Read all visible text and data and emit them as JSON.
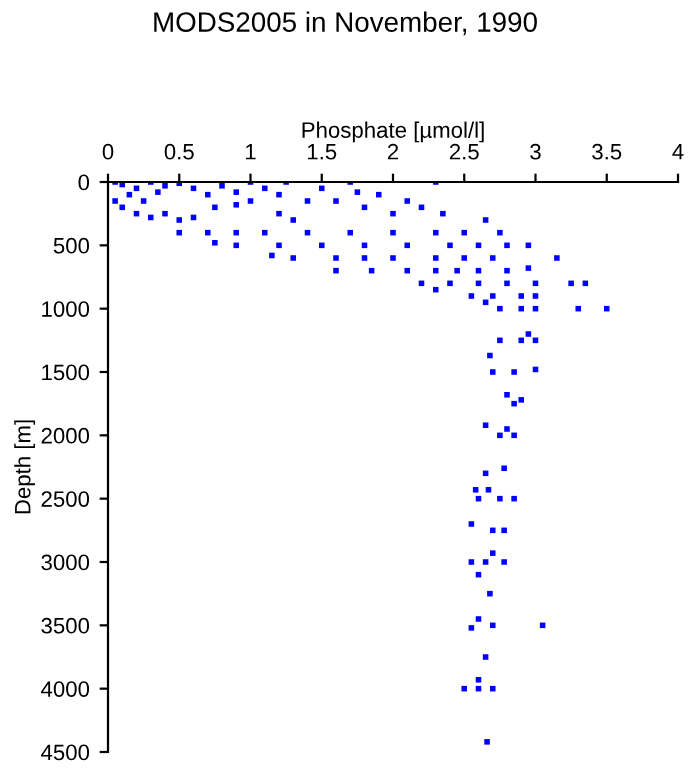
{
  "chart_data": {
    "type": "scatter",
    "title": "MODS2005 in November, 1990",
    "xlabel": "Phosphate [µmol/l]",
    "ylabel": "Depth [m]",
    "xlim": [
      0,
      4
    ],
    "xticks": [
      0,
      0.5,
      1,
      1.5,
      2,
      2.5,
      3,
      3.5,
      4
    ],
    "ylim": [
      4500,
      0
    ],
    "yticks": [
      0,
      500,
      1000,
      1500,
      2000,
      2500,
      3000,
      3500,
      4000,
      4500
    ],
    "grid": false,
    "legend": false,
    "marker": "square",
    "series": [
      {
        "color": "#0000ff",
        "x": [
          0.05,
          0.1,
          0.2,
          0.3,
          0.4,
          0.5,
          0.15,
          0.25,
          0.35,
          0.6,
          0.7,
          0.8,
          0.9,
          1.0,
          1.1,
          1.2,
          1.25,
          0.05,
          0.1,
          0.2,
          0.3,
          0.4,
          0.5,
          0.6,
          0.75,
          0.9,
          1.0,
          1.2,
          1.3,
          1.5,
          1.6,
          1.7,
          1.75,
          1.9,
          2.0,
          2.1,
          2.2,
          2.3,
          2.35,
          1.4,
          1.8,
          2.65,
          0.5,
          0.7,
          0.9,
          1.1,
          1.4,
          1.7,
          2.0,
          2.3,
          2.5,
          2.75,
          0.75,
          0.9,
          1.2,
          1.5,
          1.8,
          2.1,
          2.4,
          2.6,
          2.8,
          2.95,
          1.15,
          1.3,
          1.6,
          1.8,
          2.0,
          2.3,
          2.5,
          2.7,
          3.15,
          1.6,
          1.85,
          2.1,
          2.3,
          2.45,
          2.6,
          2.8,
          2.95,
          2.2,
          2.4,
          2.6,
          2.8,
          3.0,
          3.25,
          3.35,
          2.3,
          2.55,
          2.7,
          2.9,
          3.0,
          2.65,
          2.75,
          2.9,
          3.0,
          3.3,
          3.5,
          2.75,
          2.9,
          3.0,
          2.95,
          2.68,
          2.7,
          2.85,
          3.0,
          2.8,
          2.9,
          2.85,
          2.65,
          2.75,
          2.85,
          2.8,
          2.65,
          2.78,
          2.6,
          2.75,
          2.85,
          2.58,
          2.67,
          2.55,
          2.7,
          2.78,
          2.55,
          2.65,
          2.78,
          2.7,
          2.6,
          2.68,
          2.55,
          2.6,
          2.7,
          3.05,
          2.65,
          2.6,
          2.5,
          2.6,
          2.7,
          2.66
        ],
        "values": [
          0,
          20,
          50,
          0,
          30,
          10,
          100,
          150,
          80,
          50,
          100,
          30,
          80,
          0,
          50,
          100,
          0,
          150,
          200,
          250,
          280,
          250,
          300,
          280,
          200,
          180,
          150,
          250,
          300,
          50,
          150,
          0,
          80,
          100,
          250,
          150,
          200,
          0,
          250,
          150,
          200,
          300,
          400,
          400,
          400,
          400,
          400,
          400,
          400,
          400,
          400,
          400,
          480,
          500,
          500,
          500,
          500,
          500,
          500,
          500,
          500,
          500,
          580,
          600,
          600,
          600,
          600,
          600,
          600,
          600,
          600,
          700,
          700,
          700,
          700,
          700,
          700,
          700,
          680,
          800,
          800,
          800,
          800,
          800,
          800,
          800,
          850,
          900,
          900,
          900,
          900,
          950,
          1000,
          1000,
          1000,
          1000,
          1000,
          1250,
          1250,
          1250,
          1200,
          1370,
          1500,
          1500,
          1480,
          1680,
          1720,
          1750,
          1920,
          2000,
          2000,
          1950,
          2300,
          2260,
          2500,
          2500,
          2500,
          2430,
          2430,
          2700,
          2750,
          2750,
          3000,
          3000,
          3000,
          2930,
          3100,
          3250,
          3520,
          3450,
          3500,
          3500,
          3750,
          3930,
          4000,
          4000,
          4000,
          4420
        ]
      }
    ]
  }
}
